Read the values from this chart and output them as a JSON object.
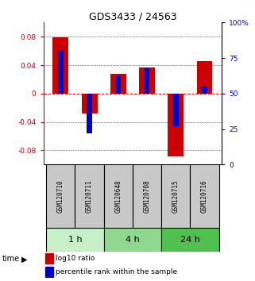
{
  "title": "GDS3433 / 24563",
  "samples": [
    "GSM120710",
    "GSM120711",
    "GSM120648",
    "GSM120708",
    "GSM120715",
    "GSM120716"
  ],
  "log10_ratio": [
    0.079,
    -0.028,
    0.028,
    0.037,
    -0.088,
    0.046
  ],
  "percentile_rank": [
    80,
    22,
    62,
    68,
    27,
    55
  ],
  "groups": [
    {
      "label": "1 h",
      "indices": [
        0,
        1
      ],
      "color": "#c8f0c8"
    },
    {
      "label": "4 h",
      "indices": [
        2,
        3
      ],
      "color": "#90d890"
    },
    {
      "label": "24 h",
      "indices": [
        4,
        5
      ],
      "color": "#50c050"
    }
  ],
  "ylim": [
    -0.1,
    0.1
  ],
  "yticks_left": [
    -0.08,
    -0.04,
    0.0,
    0.04,
    0.08
  ],
  "yticks_right": [
    0,
    25,
    50,
    75,
    100
  ],
  "bar_color_red": "#cc0000",
  "bar_color_blue": "#0000cc",
  "bar_width": 0.55,
  "blue_bar_width": 0.18,
  "title_color": "#333333",
  "left_tick_color": "#cc0000",
  "right_tick_color": "#0000cc",
  "background_color": "#ffffff",
  "legend_red_label": "log10 ratio",
  "legend_blue_label": "percentile rank within the sample",
  "sample_box_color": "#c8c8c8"
}
